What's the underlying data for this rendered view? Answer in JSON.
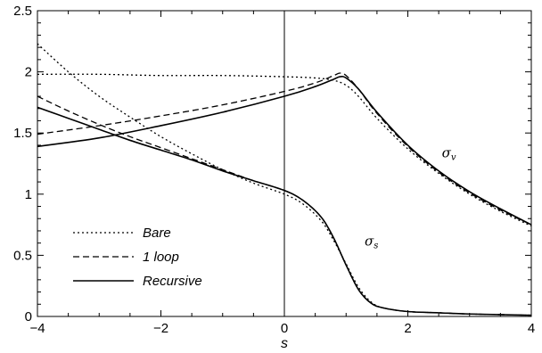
{
  "chart_data": {
    "type": "line",
    "title": "",
    "xlabel": "s",
    "ylabel": "",
    "xlim": [
      -4,
      4
    ],
    "ylim": [
      0,
      2.5
    ],
    "xticks": [
      -4,
      -2,
      0,
      2,
      4
    ],
    "xtick_labels": [
      "−4",
      "−2",
      "0",
      "2",
      "4"
    ],
    "yticks": [
      0,
      0.5,
      1,
      1.5,
      2,
      2.5
    ],
    "ytick_labels": [
      "0",
      "0.5",
      "1",
      "1.5",
      "2",
      "2.5"
    ],
    "grid": false,
    "reference_line_x": 0,
    "legend_position": "bottom-left",
    "legend": [
      {
        "label": "Bare",
        "style": "dotted"
      },
      {
        "label": "1 loop",
        "style": "dashed"
      },
      {
        "label": "Recursive",
        "style": "solid"
      }
    ],
    "annotations": [
      {
        "text": "σ",
        "sub": "v",
        "x": 2.55,
        "y": 1.3
      },
      {
        "text": "σ",
        "sub": "s",
        "x": 1.3,
        "y": 0.58
      }
    ],
    "series": [
      {
        "name": "Bare",
        "curve": "sigma_v",
        "style": "dotted",
        "x": [
          -4,
          -3,
          -2,
          -1,
          0,
          0.5,
          0.8,
          1.0,
          1.2,
          1.5,
          2,
          2.5,
          3,
          3.5,
          4
        ],
        "y": [
          1.98,
          1.98,
          1.97,
          1.97,
          1.96,
          1.95,
          1.93,
          1.89,
          1.8,
          1.62,
          1.37,
          1.17,
          1.0,
          0.86,
          0.74
        ]
      },
      {
        "name": "Bare",
        "curve": "sigma_s",
        "style": "dotted",
        "x": [
          -4,
          -3.5,
          -3,
          -2.5,
          -2,
          -1.5,
          -1,
          -0.5,
          0,
          0.3,
          0.6,
          0.8,
          1.0,
          1.2,
          1.4,
          1.6,
          2,
          2.5,
          3,
          4
        ],
        "y": [
          2.23,
          2.0,
          1.8,
          1.63,
          1.47,
          1.33,
          1.2,
          1.09,
          1.0,
          0.92,
          0.78,
          0.62,
          0.43,
          0.24,
          0.12,
          0.07,
          0.04,
          0.03,
          0.02,
          0.01
        ]
      },
      {
        "name": "1 loop",
        "curve": "sigma_v",
        "style": "dashed",
        "x": [
          -4,
          -3,
          -2,
          -1,
          0,
          0.5,
          0.8,
          0.9,
          1.0,
          1.2,
          1.5,
          2,
          2.5,
          3,
          3.5,
          4
        ],
        "y": [
          1.49,
          1.56,
          1.64,
          1.73,
          1.84,
          1.91,
          1.97,
          1.99,
          1.97,
          1.86,
          1.66,
          1.39,
          1.18,
          1.01,
          0.87,
          0.75
        ]
      },
      {
        "name": "1 loop",
        "curve": "sigma_s",
        "style": "dashed",
        "x": [
          -4,
          -3.5,
          -3,
          -2.5,
          -2,
          -1.5,
          -1,
          -0.5,
          0,
          0.3,
          0.6,
          0.8,
          1.0,
          1.2,
          1.4,
          1.6,
          2,
          2.5,
          3,
          4
        ],
        "y": [
          1.8,
          1.68,
          1.57,
          1.47,
          1.38,
          1.29,
          1.2,
          1.11,
          1.03,
          0.95,
          0.81,
          0.64,
          0.42,
          0.22,
          0.11,
          0.07,
          0.04,
          0.03,
          0.02,
          0.01
        ]
      },
      {
        "name": "Recursive",
        "curve": "sigma_v",
        "style": "solid",
        "x": [
          -4,
          -3,
          -2,
          -1,
          0,
          0.5,
          0.8,
          0.9,
          1.0,
          1.2,
          1.5,
          2,
          2.5,
          3,
          3.5,
          4
        ],
        "y": [
          1.39,
          1.46,
          1.56,
          1.67,
          1.8,
          1.88,
          1.94,
          1.96,
          1.95,
          1.86,
          1.67,
          1.4,
          1.19,
          1.02,
          0.88,
          0.75
        ]
      },
      {
        "name": "Recursive",
        "curve": "sigma_s",
        "style": "solid",
        "x": [
          -4,
          -3.5,
          -3,
          -2.5,
          -2,
          -1.5,
          -1,
          -0.5,
          0,
          0.3,
          0.6,
          0.8,
          1.0,
          1.2,
          1.4,
          1.6,
          2,
          2.5,
          3,
          4
        ],
        "y": [
          1.71,
          1.62,
          1.53,
          1.44,
          1.36,
          1.28,
          1.19,
          1.11,
          1.03,
          0.95,
          0.81,
          0.64,
          0.42,
          0.22,
          0.11,
          0.07,
          0.04,
          0.03,
          0.02,
          0.01
        ]
      }
    ]
  }
}
